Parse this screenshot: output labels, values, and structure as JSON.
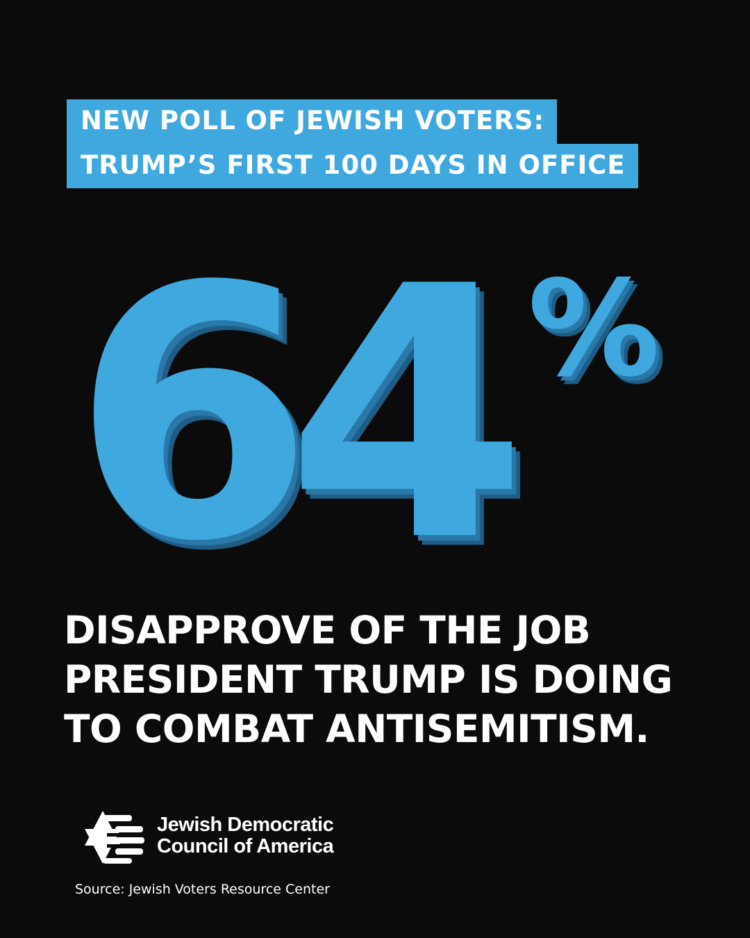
{
  "headline": {
    "line1": "NEW POLL OF JEWISH VOTERS:",
    "line2": "TRUMP’S FIRST 100 DAYS IN OFFICE"
  },
  "stat": {
    "number": "64",
    "unit": "%",
    "value_percent": 64
  },
  "statement": {
    "line1": "DISAPPROVE OF THE JOB",
    "line2": "PRESIDENT TRUMP IS DOING",
    "line3": "TO COMBAT ANTISEMITISM."
  },
  "organization": {
    "line1": "Jewish Democratic",
    "line2": "Council of America",
    "logo_icon": "star-of-david-flag-icon"
  },
  "source": "Source: Jewish Voters Resource Center",
  "colors": {
    "background": "#0b0b0b",
    "accent": "#3ea8df",
    "accent_shadow": "#2a78a8",
    "text": "#ffffff"
  }
}
